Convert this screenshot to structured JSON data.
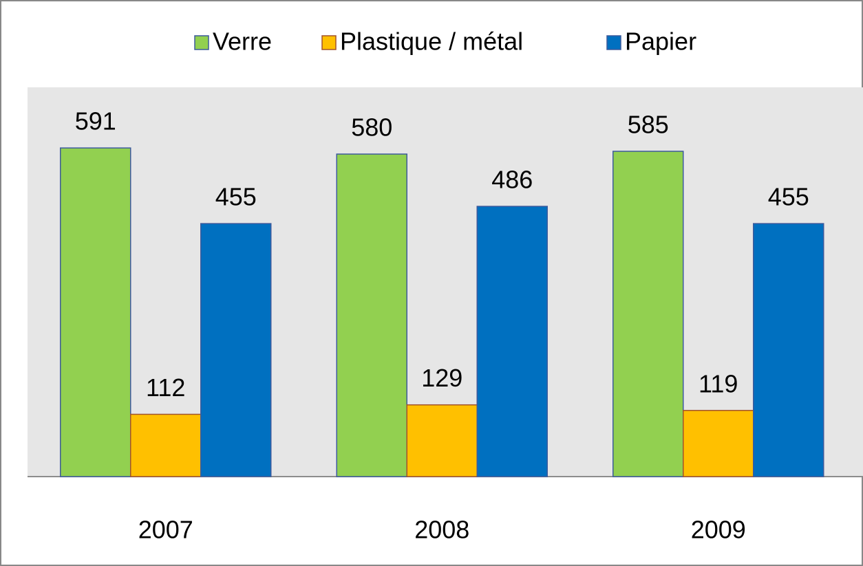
{
  "chart_data": {
    "type": "bar",
    "categories": [
      "2007",
      "2008",
      "2009"
    ],
    "series": [
      {
        "name": "Verre",
        "color": "#92d050",
        "values": [
          591,
          580,
          585
        ]
      },
      {
        "name": "Plastique / métal",
        "color": "#ffc000",
        "values": [
          112,
          129,
          119
        ]
      },
      {
        "name": "Papier",
        "color": "#0070c0",
        "values": [
          455,
          486,
          455
        ]
      }
    ],
    "ylim": [
      0,
      700
    ],
    "legend": "top"
  }
}
